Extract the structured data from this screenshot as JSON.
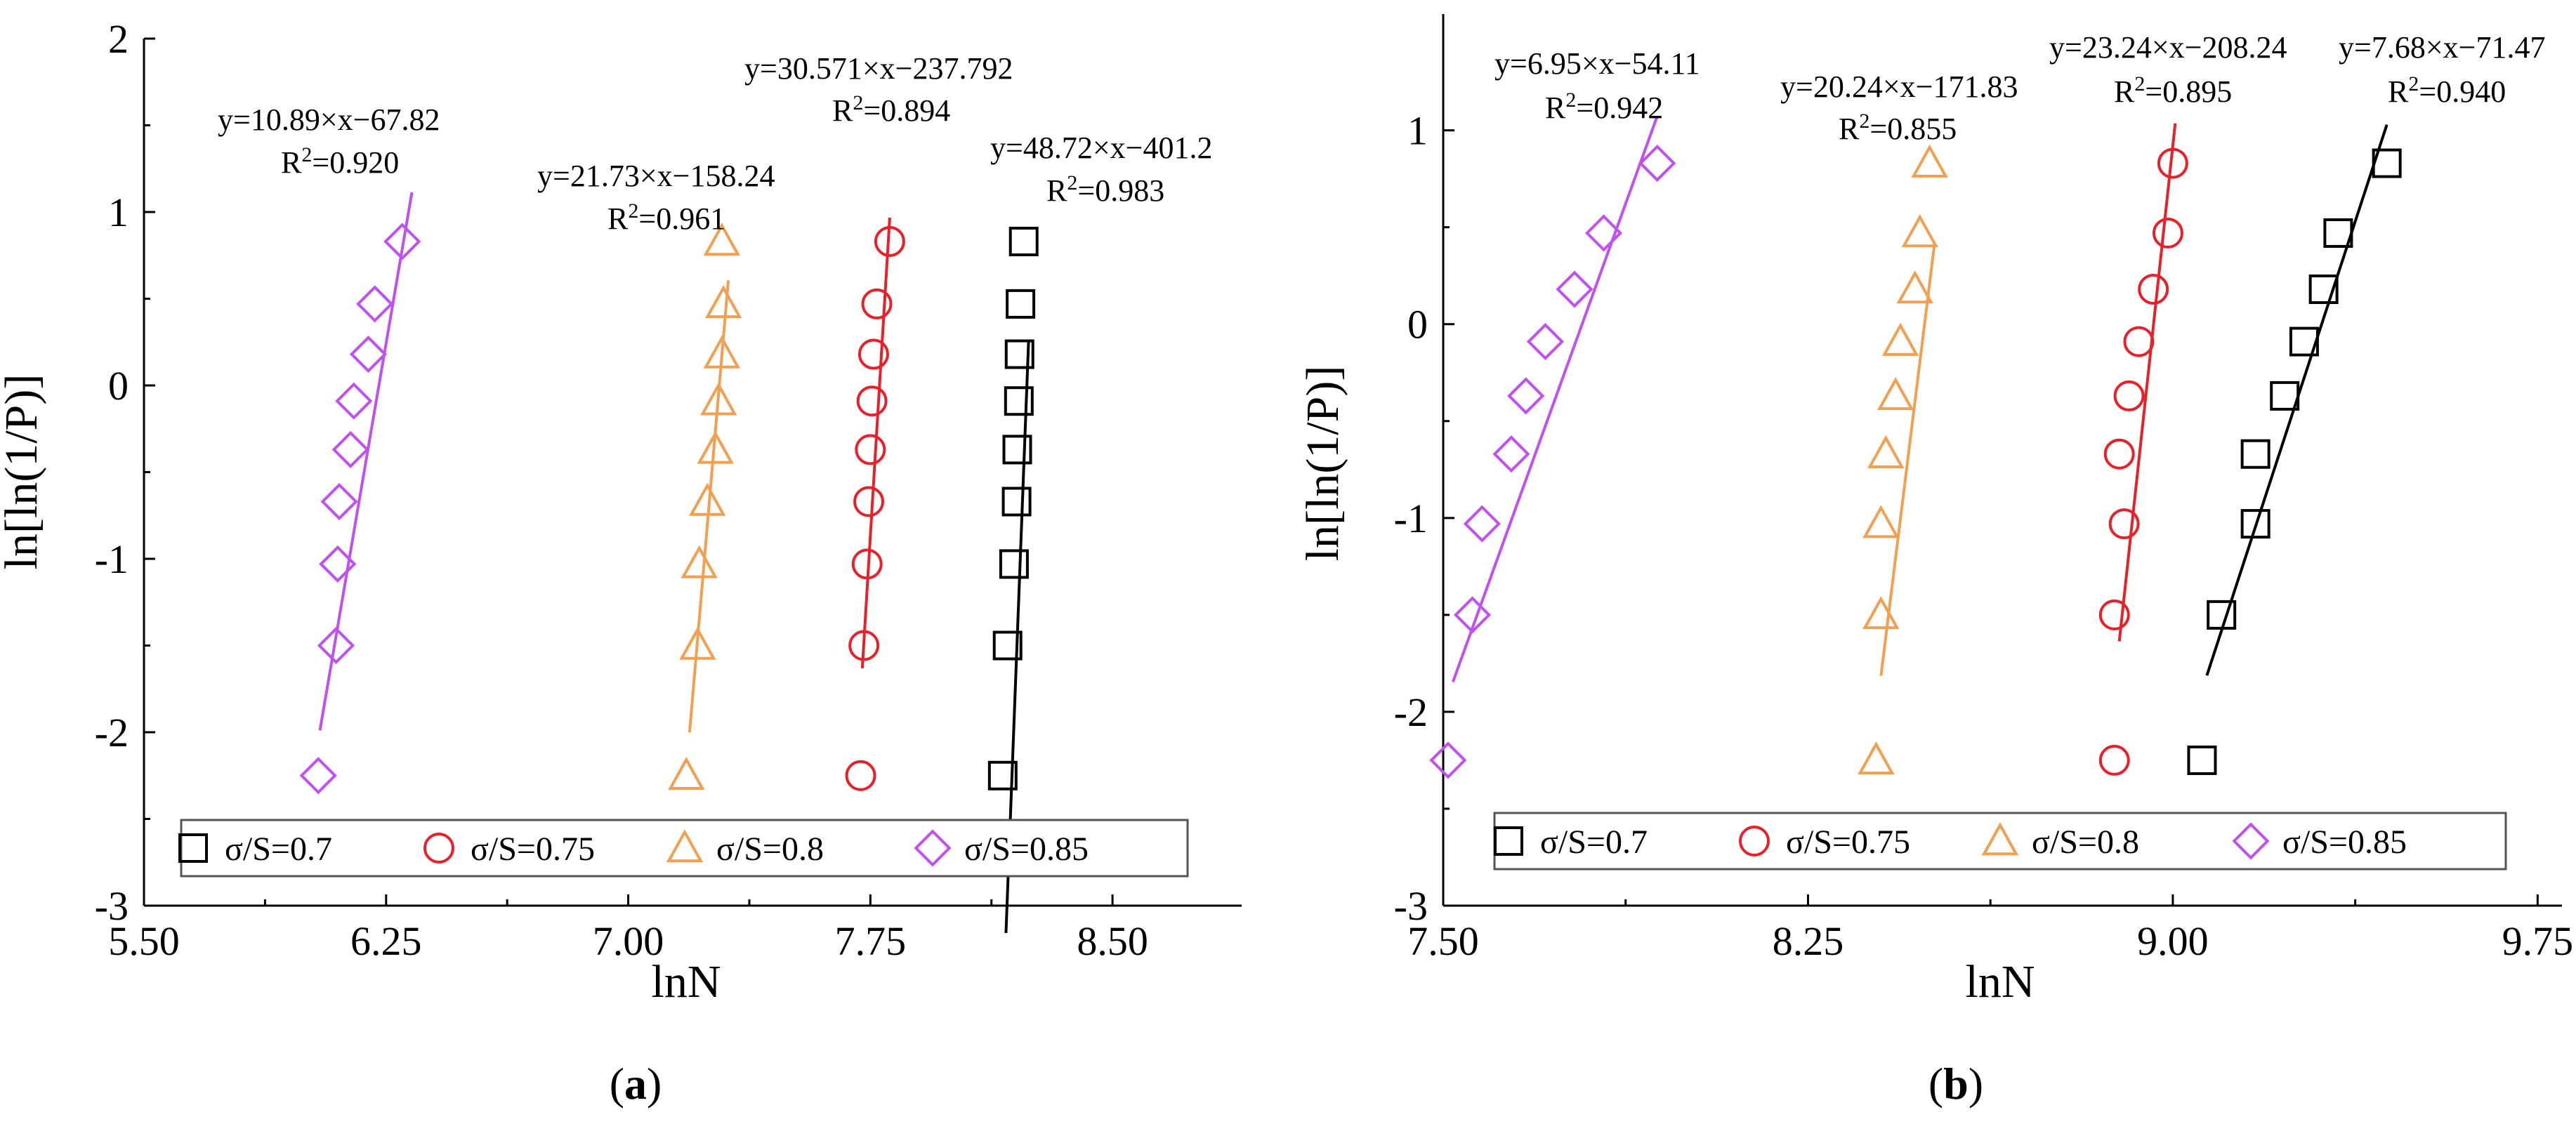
{
  "chart_data": [
    {
      "type": "scatter",
      "panel_label": "a",
      "xlabel": "lnN",
      "ylabel": "ln[ln(1/P)]",
      "xlim": [
        5.5,
        8.9
      ],
      "ylim": [
        -3,
        2
      ],
      "x_ticks": [
        "5.50",
        "6.25",
        "7.00",
        "7.75",
        "8.50"
      ],
      "x_tick_values": [
        5.5,
        6.25,
        7.0,
        7.75,
        8.5
      ],
      "y_ticks": [
        "-3",
        "-2",
        "-1",
        "0",
        "1",
        "2"
      ],
      "y_tick_values": [
        -3,
        -2,
        -1,
        0,
        1,
        2
      ],
      "y_probability_levels": [
        -2.25,
        -1.5,
        -1.03,
        -0.67,
        -0.37,
        -0.09,
        0.18,
        0.47,
        0.83
      ],
      "series": [
        {
          "name": "σ/S=0.7",
          "marker": "square",
          "color": "#000000",
          "x": [
            8.16,
            8.175,
            8.195,
            8.203,
            8.205,
            8.21,
            8.212,
            8.215,
            8.225
          ],
          "fit": {
            "equation": "y=48.72×x−401.2",
            "r2": "0.983",
            "x_range": [
              8.17,
              8.24
            ]
          }
        },
        {
          "name": "σ/S=0.75",
          "marker": "circle",
          "color": "#e8202a",
          "x": [
            7.72,
            7.73,
            7.74,
            7.745,
            7.75,
            7.755,
            7.76,
            7.77,
            7.81
          ],
          "fit": {
            "equation": "y=30.571×x−237.792",
            "r2": "0.894",
            "x_range": [
              7.725,
              7.81
            ]
          }
        },
        {
          "name": "σ/S=0.8",
          "marker": "triangle",
          "color": "#f0a050",
          "x": [
            7.18,
            7.215,
            7.22,
            7.245,
            7.27,
            7.28,
            7.29,
            7.295,
            7.29
          ],
          "fit": {
            "equation": "y=21.73×x−158.24",
            "r2": "0.961",
            "x_range": [
              7.19,
              7.31
            ]
          }
        },
        {
          "name": "σ/S=0.85",
          "marker": "diamond",
          "color": "#c050f0",
          "x": [
            6.04,
            6.095,
            6.1,
            6.105,
            6.14,
            6.15,
            6.195,
            6.215,
            6.3
          ],
          "fit": {
            "equation": "y=10.89×x−67.82",
            "r2": "0.920",
            "x_range": [
              6.045,
              6.33
            ]
          }
        }
      ]
    },
    {
      "type": "scatter",
      "panel_label": "b",
      "xlabel": "lnN",
      "ylabel": "ln[ln(1/P)]",
      "xlim": [
        7.5,
        9.8
      ],
      "ylim": [
        -3,
        1.6
      ],
      "x_ticks": [
        "7.50",
        "8.25",
        "9.00",
        "9.75"
      ],
      "x_tick_values": [
        7.5,
        8.25,
        9.0,
        9.75
      ],
      "y_ticks": [
        "-3",
        "-2",
        "-1",
        "0",
        "1"
      ],
      "y_tick_values": [
        -3,
        -2,
        -1,
        0,
        1
      ],
      "y_probability_levels": [
        -2.25,
        -1.5,
        -1.03,
        -0.67,
        -0.37,
        -0.09,
        0.18,
        0.47,
        0.83
      ],
      "series": [
        {
          "name": "σ/S=0.7",
          "marker": "square",
          "color": "#000000",
          "x": [
            9.06,
            9.1,
            9.17,
            9.17,
            9.23,
            9.27,
            9.31,
            9.34,
            9.44
          ],
          "fit": {
            "equation": "y=7.68×x−71.47",
            "r2": "0.940",
            "x_range": [
              9.07,
              9.44
            ]
          }
        },
        {
          "name": "σ/S=0.75",
          "marker": "circle",
          "color": "#e8202a",
          "x": [
            8.88,
            8.88,
            8.9,
            8.89,
            8.91,
            8.93,
            8.96,
            8.99,
            9.0
          ],
          "fit": {
            "equation": "y=23.24×x−208.24",
            "r2": "0.895",
            "x_range": [
              8.89,
              9.005
            ]
          }
        },
        {
          "name": "σ/S=0.8",
          "marker": "triangle",
          "color": "#f0a050",
          "x": [
            8.39,
            8.4,
            8.4,
            8.41,
            8.43,
            8.44,
            8.47,
            8.48,
            8.5
          ],
          "fit": {
            "equation": "y=20.24×x−171.83",
            "r2": "0.855",
            "x_range": [
              8.4,
              8.51
            ]
          }
        },
        {
          "name": "σ/S=0.85",
          "marker": "diamond",
          "color": "#c050f0",
          "x": [
            7.51,
            7.56,
            7.58,
            7.64,
            7.67,
            7.71,
            7.77,
            7.83,
            7.94
          ],
          "fit": {
            "equation": "y=6.95×x−54.11",
            "r2": "0.942",
            "x_range": [
              7.52,
              7.94
            ]
          }
        }
      ]
    }
  ]
}
